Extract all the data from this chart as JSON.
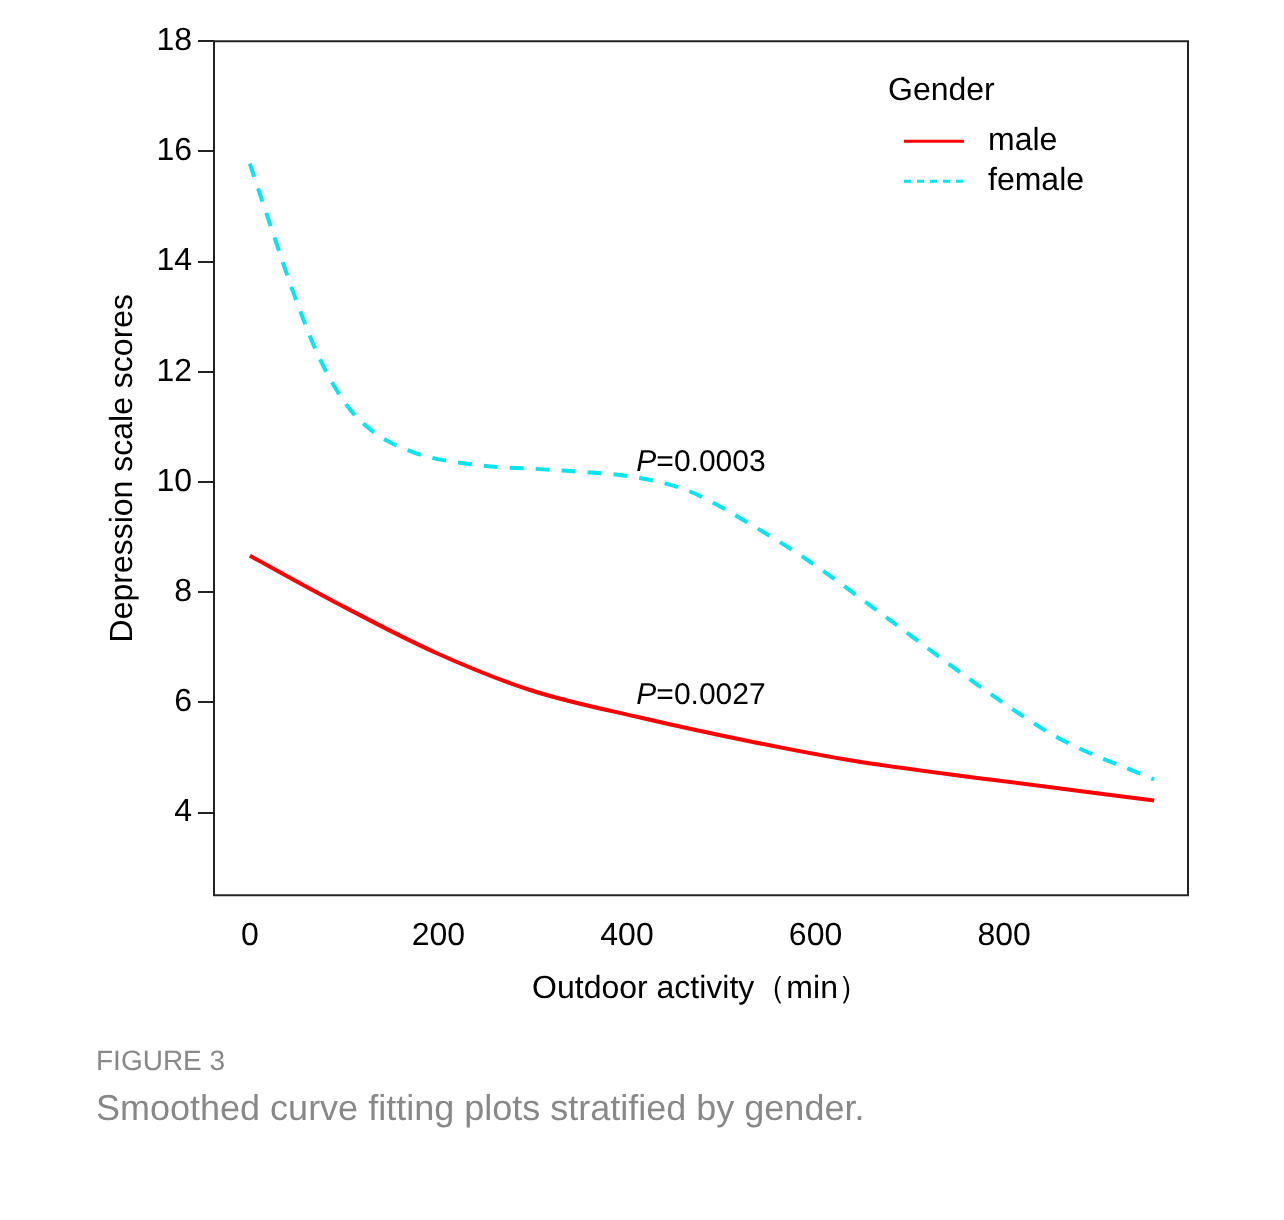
{
  "chart_data": {
    "type": "line",
    "xlabel": "Outdoor activity（min）",
    "ylabel": "Depression scale scores",
    "legend_title": "Gender",
    "legend": "top right",
    "grid": false,
    "marker": "none",
    "xlim": [
      -38,
      995
    ],
    "ylim": [
      2.5,
      18
    ],
    "xticks": [
      0,
      200,
      400,
      600,
      800
    ],
    "yticks": [
      4,
      6,
      8,
      10,
      12,
      14,
      16,
      18
    ],
    "series": [
      {
        "name": "male",
        "color": "#ff0000",
        "line_style": "solid",
        "x": [
          0,
          87,
          196,
          298,
          415,
          531,
          640,
          785,
          959
        ],
        "values": [
          8.66,
          7.85,
          6.91,
          6.22,
          5.72,
          5.29,
          4.94,
          4.6,
          4.22
        ]
      },
      {
        "name": "female",
        "color": "#00e5ee",
        "line_style": "dashed",
        "x": [
          0,
          22,
          47,
          73,
          102,
          131,
          175,
          240,
          320,
          407,
          465,
          538,
          596,
          676,
          785,
          858,
          959
        ],
        "values": [
          15.78,
          14.65,
          13.4,
          12.28,
          11.41,
          10.91,
          10.53,
          10.31,
          10.22,
          10.09,
          9.84,
          9.16,
          8.53,
          7.53,
          6.16,
          5.35,
          4.6
        ]
      }
    ],
    "annotations": [
      "P=0.0003",
      "P=0.0027",
      "FIGURE 3",
      "Smoothed curve fitting plots stratified by gender."
    ]
  }
}
